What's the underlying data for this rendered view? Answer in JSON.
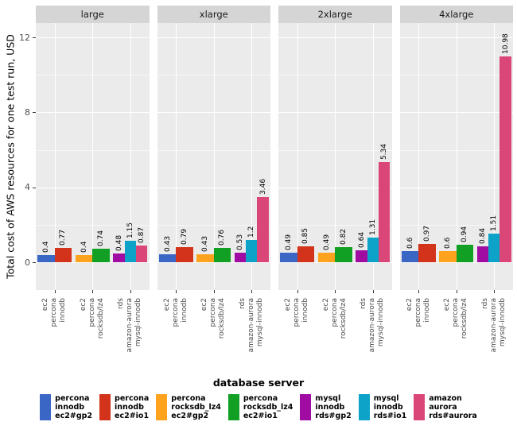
{
  "y_axis": {
    "title": "Total cost of AWS resources for one test run, USD",
    "ticks": [
      0,
      4,
      8,
      12
    ],
    "minor_ticks": [
      2,
      6,
      10
    ]
  },
  "legend": {
    "title": "database server",
    "items": [
      {
        "lines": "percona\ninnodb\nec2#gp2",
        "color": "#3a66c6"
      },
      {
        "lines": "percona\ninnodb\nec2#io1",
        "color": "#d2331a"
      },
      {
        "lines": "percona\nrocksdb_lz4\nec2#gp2",
        "color": "#ffa21d"
      },
      {
        "lines": "percona\nrocksdb_lz4\nec2#io1",
        "color": "#12a024"
      },
      {
        "lines": "mysql\ninnodb\nrds#gp2",
        "color": "#a00ba2"
      },
      {
        "lines": "mysql\ninnodb\nrds#io1",
        "color": "#0da3c9"
      },
      {
        "lines": "amazon\naurora\nrds#aurora",
        "color": "#db4679"
      }
    ]
  },
  "chart_data": {
    "type": "bar",
    "title": "",
    "ylabel": "Total cost of AWS resources for one test run, USD",
    "xlabel": "",
    "ylim": [
      0,
      12.8
    ],
    "grid": true,
    "legend_position": "bottom",
    "facets": [
      "large",
      "xlarge",
      "2xlarge",
      "4xlarge"
    ],
    "x_categories": [
      "ec2\npercona\ninnodb",
      "ec2\npercona\nrocksdb/lz4",
      "rds\namazon-aurora\nmysql-innodb"
    ],
    "series": [
      {
        "name": "percona innodb ec2#gp2",
        "color": "#3a66c6",
        "category": 0,
        "values": [
          0.4,
          0.43,
          0.49,
          0.6
        ]
      },
      {
        "name": "percona innodb ec2#io1",
        "color": "#d2331a",
        "category": 0,
        "values": [
          0.77,
          0.79,
          0.85,
          0.97
        ]
      },
      {
        "name": "percona rocksdb_lz4 ec2#gp2",
        "color": "#ffa21d",
        "category": 1,
        "values": [
          0.4,
          0.43,
          0.49,
          0.6
        ]
      },
      {
        "name": "percona rocksdb_lz4 ec2#io1",
        "color": "#12a024",
        "category": 1,
        "values": [
          0.74,
          0.76,
          0.82,
          0.94
        ]
      },
      {
        "name": "mysql innodb rds#gp2",
        "color": "#a00ba2",
        "category": 2,
        "values": [
          0.48,
          0.53,
          0.64,
          0.84
        ]
      },
      {
        "name": "mysql innodb rds#io1",
        "color": "#0da3c9",
        "category": 2,
        "values": [
          1.15,
          1.2,
          1.31,
          1.51
        ]
      },
      {
        "name": "amazon aurora rds#aurora",
        "color": "#db4679",
        "category": 2,
        "values": [
          0.87,
          3.46,
          5.34,
          10.98
        ]
      }
    ]
  }
}
